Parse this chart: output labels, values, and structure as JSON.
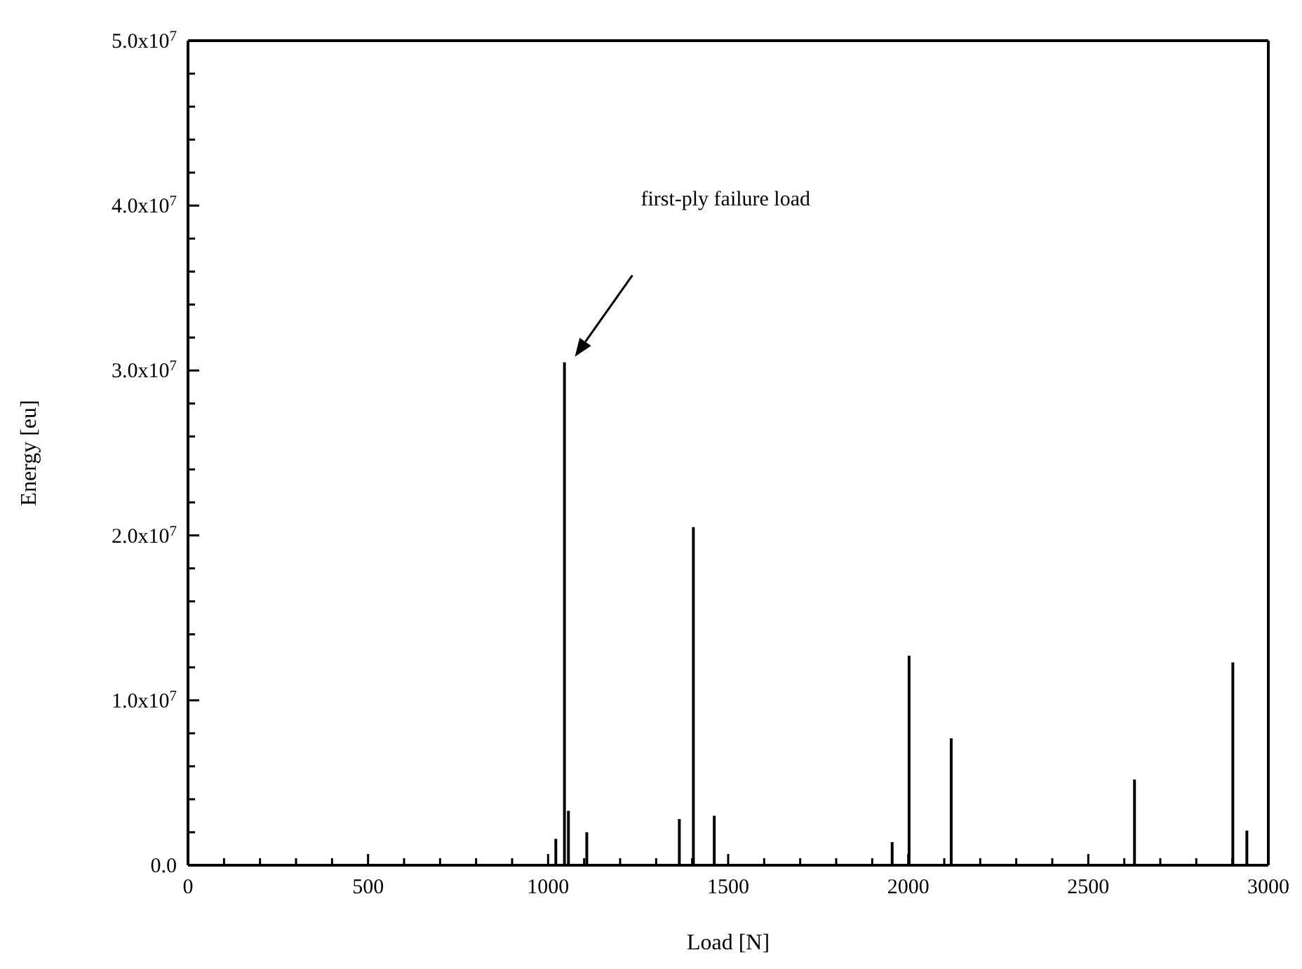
{
  "chart_data": {
    "type": "bar",
    "xlabel": "Load [N]",
    "ylabel": "Energy [eu]",
    "x": [
      1023,
      1047,
      1058,
      1109,
      1366,
      1405,
      1463,
      1957,
      2004,
      2121,
      2630,
      2903,
      2942
    ],
    "values": [
      1600000,
      30500000,
      3300000,
      2000000,
      2800000,
      20500000,
      3000000,
      1400000,
      12700000,
      7700000,
      5200000,
      12300000,
      2100000
    ],
    "color": "#000000",
    "xlim": [
      0,
      3000
    ],
    "xticks": [
      0,
      {
        "value": 100,
        "label": null
      },
      {
        "value": 200,
        "label": null
      },
      {
        "value": 300,
        "label": null
      },
      {
        "value": 400,
        "label": null
      },
      500,
      {
        "value": 600,
        "label": null
      },
      {
        "value": 700,
        "label": null
      },
      {
        "value": 800,
        "label": null
      },
      {
        "value": 900,
        "label": null
      },
      1000,
      {
        "value": 1100,
        "label": null
      },
      {
        "value": 1200,
        "label": null
      },
      {
        "value": 1300,
        "label": null
      },
      {
        "value": 1400,
        "label": null
      },
      1500,
      {
        "value": 1600,
        "label": null
      },
      {
        "value": 1700,
        "label": null
      },
      {
        "value": 1800,
        "label": null
      },
      {
        "value": 1900,
        "label": null
      },
      2000,
      {
        "value": 2100,
        "label": null
      },
      {
        "value": 2200,
        "label": null
      },
      {
        "value": 2300,
        "label": null
      },
      {
        "value": 2400,
        "label": null
      },
      2500,
      {
        "value": 2600,
        "label": null
      },
      {
        "value": 2700,
        "label": null
      },
      {
        "value": 2800,
        "label": null
      },
      {
        "value": 2900,
        "label": null
      },
      3000
    ],
    "ylim": [
      0,
      50000000
    ],
    "yticks": [
      {
        "value": 0,
        "label": "0.0"
      },
      {
        "value": 2000000,
        "label": null
      },
      {
        "value": 4000000,
        "label": null
      },
      {
        "value": 6000000,
        "label": null
      },
      {
        "value": 8000000,
        "label": null
      },
      {
        "value": 10000000,
        "label": "1.0x10$^{7}$"
      },
      {
        "value": 12000000,
        "label": null
      },
      {
        "value": 14000000,
        "label": null
      },
      {
        "value": 16000000,
        "label": null
      },
      {
        "value": 18000000,
        "label": null
      },
      {
        "value": 20000000,
        "label": "2.0x10$^{7}$"
      },
      {
        "value": 22000000,
        "label": null
      },
      {
        "value": 24000000,
        "label": null
      },
      {
        "value": 26000000,
        "label": null
      },
      {
        "value": 28000000,
        "label": null
      },
      {
        "value": 30000000,
        "label": "3.0x10$^{7}$"
      },
      {
        "value": 32000000,
        "label": null
      },
      {
        "value": 34000000,
        "label": null
      },
      {
        "value": 36000000,
        "label": null
      },
      {
        "value": 38000000,
        "label": null
      },
      {
        "value": 40000000,
        "label": "4.0x10$^{7}$"
      },
      {
        "value": 42000000,
        "label": null
      },
      {
        "value": 44000000,
        "label": null
      },
      {
        "value": 46000000,
        "label": null
      },
      {
        "value": 48000000,
        "label": null
      },
      {
        "value": 50000000,
        "label": "5.0x10$^{7}$"
      }
    ],
    "annotations": [
      "first-ply failure load"
    ],
    "grid": false,
    "legend": false
  }
}
